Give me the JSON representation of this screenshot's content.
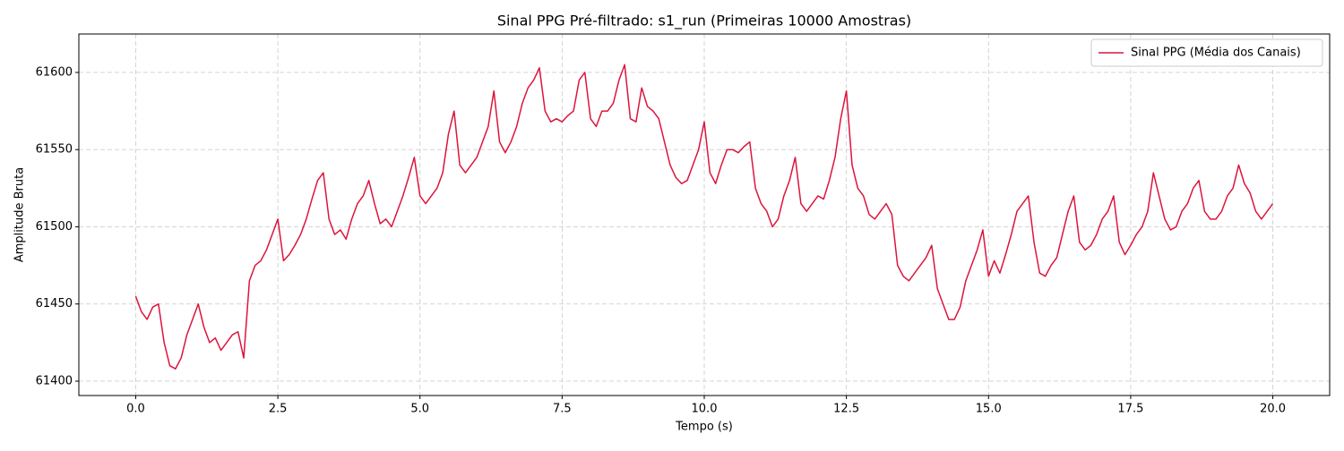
{
  "chart_data": {
    "type": "line",
    "title": "Sinal PPG Pré-filtrado: s1_run (Primeiras 10000 Amostras)",
    "x_label": "Tempo (s)",
    "y_label": "Amplitude Bruta",
    "x": [
      0.0,
      0.1,
      0.2,
      0.3,
      0.4,
      0.5,
      0.6,
      0.7,
      0.8,
      0.9,
      1.0,
      1.1,
      1.2,
      1.3,
      1.4,
      1.5,
      1.6,
      1.7,
      1.8,
      1.9,
      2.0,
      2.1,
      2.2,
      2.3,
      2.4,
      2.5,
      2.6,
      2.7,
      2.8,
      2.9,
      3.0,
      3.1,
      3.2,
      3.3,
      3.4,
      3.5,
      3.6,
      3.7,
      3.8,
      3.9,
      4.0,
      4.1,
      4.2,
      4.3,
      4.4,
      4.5,
      4.6,
      4.7,
      4.8,
      4.9,
      5.0,
      5.1,
      5.2,
      5.3,
      5.4,
      5.5,
      5.6,
      5.7,
      5.8,
      5.9,
      6.0,
      6.1,
      6.2,
      6.3,
      6.4,
      6.5,
      6.6,
      6.7,
      6.8,
      6.9,
      7.0,
      7.1,
      7.2,
      7.3,
      7.4,
      7.5,
      7.6,
      7.7,
      7.8,
      7.9,
      8.0,
      8.1,
      8.2,
      8.3,
      8.4,
      8.5,
      8.6,
      8.7,
      8.8,
      8.9,
      9.0,
      9.1,
      9.2,
      9.3,
      9.4,
      9.5,
      9.6,
      9.7,
      9.8,
      9.9,
      10.0,
      10.1,
      10.2,
      10.3,
      10.4,
      10.5,
      10.6,
      10.7,
      10.8,
      10.9,
      11.0,
      11.1,
      11.2,
      11.3,
      11.4,
      11.5,
      11.6,
      11.7,
      11.8,
      11.9,
      12.0,
      12.1,
      12.2,
      12.3,
      12.4,
      12.5,
      12.6,
      12.7,
      12.8,
      12.9,
      13.0,
      13.1,
      13.2,
      13.3,
      13.4,
      13.5,
      13.6,
      13.7,
      13.8,
      13.9,
      14.0,
      14.1,
      14.2,
      14.3,
      14.4,
      14.5,
      14.6,
      14.7,
      14.8,
      14.9,
      15.0,
      15.1,
      15.2,
      15.3,
      15.4,
      15.5,
      15.6,
      15.7,
      15.8,
      15.9,
      16.0,
      16.1,
      16.2,
      16.3,
      16.4,
      16.5,
      16.6,
      16.7,
      16.8,
      16.9,
      17.0,
      17.1,
      17.2,
      17.3,
      17.4,
      17.5,
      17.6,
      17.7,
      17.8,
      17.9,
      18.0,
      18.1,
      18.2,
      18.3,
      18.4,
      18.5,
      18.6,
      18.7,
      18.8,
      18.9,
      19.0,
      19.1,
      19.2,
      19.3,
      19.4,
      19.5,
      19.6,
      19.7,
      19.8,
      19.9,
      20.0
    ],
    "series": [
      {
        "name": "Sinal PPG (Média dos Canais)",
        "color": "#dc143c",
        "values": [
          61455,
          61445,
          61440,
          61448,
          61450,
          61425,
          61410,
          61408,
          61415,
          61430,
          61440,
          61450,
          61435,
          61425,
          61428,
          61420,
          61425,
          61430,
          61432,
          61415,
          61465,
          61475,
          61478,
          61485,
          61495,
          61505,
          61478,
          61482,
          61488,
          61495,
          61505,
          61518,
          61530,
          61535,
          61505,
          61495,
          61498,
          61492,
          61505,
          61515,
          61520,
          61530,
          61515,
          61502,
          61505,
          61500,
          61510,
          61520,
          61532,
          61545,
          61520,
          61515,
          61520,
          61525,
          61535,
          61560,
          61575,
          61540,
          61535,
          61540,
          61545,
          61555,
          61565,
          61588,
          61555,
          61548,
          61555,
          61565,
          61580,
          61590,
          61595,
          61603,
          61575,
          61568,
          61570,
          61568,
          61572,
          61575,
          61595,
          61600,
          61570,
          61565,
          61575,
          61575,
          61580,
          61595,
          61605,
          61570,
          61568,
          61590,
          61578,
          61575,
          61570,
          61555,
          61540,
          61532,
          61528,
          61530,
          61540,
          61550,
          61568,
          61535,
          61528,
          61540,
          61550,
          61550,
          61548,
          61552,
          61555,
          61525,
          61515,
          61510,
          61500,
          61505,
          61520,
          61530,
          61545,
          61515,
          61510,
          61515,
          61520,
          61518,
          61530,
          61545,
          61570,
          61588,
          61540,
          61525,
          61520,
          61508,
          61505,
          61510,
          61515,
          61508,
          61475,
          61468,
          61465,
          61470,
          61475,
          61480,
          61488,
          61460,
          61450,
          61440,
          61440,
          61448,
          61465,
          61475,
          61485,
          61498,
          61468,
          61478,
          61470,
          61482,
          61495,
          61510,
          61515,
          61520,
          61490,
          61470,
          61468,
          61475,
          61480,
          61495,
          61510,
          61520,
          61490,
          61485,
          61488,
          61495,
          61505,
          61510,
          61520,
          61490,
          61482,
          61488,
          61495,
          61500,
          61510,
          61535,
          61520,
          61505,
          61498,
          61500,
          61510,
          61515,
          61525,
          61530,
          61510,
          61505,
          61505,
          61510,
          61520,
          61525,
          61540,
          61528,
          61522,
          61510,
          61505,
          61510,
          61515
        ]
      }
    ],
    "xlim": [
      -1.0,
      21.0
    ],
    "xticks": [
      {
        "value": 0,
        "label": "0.0"
      },
      2.5,
      {
        "value": 5,
        "label": "5.0"
      },
      7.5,
      {
        "value": 10,
        "label": "10.0"
      },
      12.5,
      {
        "value": 15,
        "label": "15.0"
      },
      17.5,
      {
        "value": 20,
        "label": "20.0"
      }
    ],
    "ylim": [
      61390.7,
      61624.9
    ],
    "yticks": [
      61400,
      61450,
      61500,
      61550,
      61600
    ],
    "grid": true,
    "legend": "upper right"
  }
}
